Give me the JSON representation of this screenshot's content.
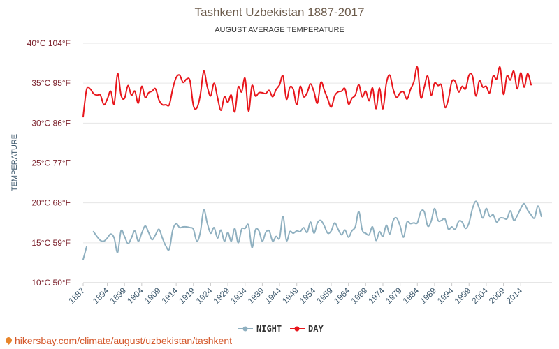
{
  "title": "Tashkent Uzbekistan 1887-2017",
  "subtitle": "AUGUST AVERAGE TEMPERATURE",
  "ylabel": "TEMPERATURE",
  "footer": "hikersbay.com/climate/august/uzbekistan/tashkent",
  "chart_data": {
    "type": "line",
    "title": "Tashkent Uzbekistan 1887-2017",
    "subtitle": "AUGUST AVERAGE TEMPERATURE",
    "ylabel": "TEMPERATURE",
    "xlabel": "",
    "xlim": [
      1887,
      2017
    ],
    "ylim": [
      10,
      40
    ],
    "grid": true,
    "legend_placement": "bottom-center",
    "y_ticks": [
      {
        "c": 10,
        "label": "10°C 50°F"
      },
      {
        "c": 15,
        "label": "15°C 59°F"
      },
      {
        "c": 20,
        "label": "20°C 68°F"
      },
      {
        "c": 25,
        "label": "25°C 77°F"
      },
      {
        "c": 30,
        "label": "30°C 86°F"
      },
      {
        "c": 35,
        "label": "35°C 95°F"
      },
      {
        "c": 40,
        "label": "40°C 104°F"
      }
    ],
    "x_ticks": [
      1887,
      1894,
      1899,
      1904,
      1909,
      1914,
      1919,
      1924,
      1929,
      1934,
      1939,
      1944,
      1949,
      1954,
      1959,
      1964,
      1969,
      1974,
      1979,
      1984,
      1989,
      1994,
      1999,
      2004,
      2009,
      2014
    ],
    "series": [
      {
        "name": "NIGHT",
        "color": "#8fb0c0",
        "points": [
          [
            1887,
            12.9
          ],
          [
            1888,
            14.5
          ],
          [
            1890,
            16.4
          ],
          [
            1891,
            15.8
          ],
          [
            1892,
            15.3
          ],
          [
            1893,
            15.2
          ],
          [
            1894,
            15.6
          ],
          [
            1895,
            16.1
          ],
          [
            1896,
            15.6
          ],
          [
            1897,
            13.8
          ],
          [
            1898,
            16.5
          ],
          [
            1899,
            15.8
          ],
          [
            1900,
            14.9
          ],
          [
            1901,
            15.6
          ],
          [
            1902,
            16.5
          ],
          [
            1903,
            15.2
          ],
          [
            1904,
            16.2
          ],
          [
            1905,
            17.1
          ],
          [
            1906,
            16.3
          ],
          [
            1907,
            15.4
          ],
          [
            1908,
            16.0
          ],
          [
            1909,
            16.7
          ],
          [
            1910,
            15.6
          ],
          [
            1911,
            14.6
          ],
          [
            1912,
            14.2
          ],
          [
            1913,
            16.6
          ],
          [
            1914,
            17.4
          ],
          [
            1915,
            16.9
          ],
          [
            1916,
            17.0
          ],
          [
            1917,
            17.0
          ],
          [
            1918,
            16.9
          ],
          [
            1919,
            16.7
          ],
          [
            1920,
            15.2
          ],
          [
            1921,
            16.3
          ],
          [
            1922,
            19.1
          ],
          [
            1923,
            17.5
          ],
          [
            1924,
            16.2
          ],
          [
            1925,
            16.9
          ],
          [
            1926,
            15.6
          ],
          [
            1927,
            16.6
          ],
          [
            1928,
            15.2
          ],
          [
            1929,
            16.3
          ],
          [
            1930,
            15.2
          ],
          [
            1931,
            16.8
          ],
          [
            1932,
            15.0
          ],
          [
            1933,
            16.7
          ],
          [
            1934,
            16.8
          ],
          [
            1935,
            17.2
          ],
          [
            1936,
            14.4
          ],
          [
            1937,
            16.6
          ],
          [
            1938,
            16.5
          ],
          [
            1939,
            15.2
          ],
          [
            1940,
            16.3
          ],
          [
            1941,
            16.5
          ],
          [
            1942,
            15.2
          ],
          [
            1943,
            15.8
          ],
          [
            1944,
            15.6
          ],
          [
            1945,
            18.3
          ],
          [
            1946,
            15.3
          ],
          [
            1947,
            16.4
          ],
          [
            1948,
            16.2
          ],
          [
            1949,
            16.5
          ],
          [
            1950,
            16.4
          ],
          [
            1951,
            16.9
          ],
          [
            1952,
            16.3
          ],
          [
            1953,
            17.6
          ],
          [
            1954,
            16.2
          ],
          [
            1955,
            17.5
          ],
          [
            1956,
            17.8
          ],
          [
            1957,
            17.1
          ],
          [
            1958,
            16.2
          ],
          [
            1959,
            16.5
          ],
          [
            1960,
            17.5
          ],
          [
            1961,
            16.7
          ],
          [
            1962,
            16.0
          ],
          [
            1963,
            16.6
          ],
          [
            1964,
            15.7
          ],
          [
            1965,
            16.5
          ],
          [
            1966,
            17.0
          ],
          [
            1967,
            18.9
          ],
          [
            1968,
            16.6
          ],
          [
            1969,
            16.2
          ],
          [
            1970,
            16.0
          ],
          [
            1971,
            17.0
          ],
          [
            1972,
            15.3
          ],
          [
            1973,
            16.4
          ],
          [
            1974,
            15.8
          ],
          [
            1975,
            17.2
          ],
          [
            1976,
            16.1
          ],
          [
            1977,
            17.8
          ],
          [
            1978,
            18.1
          ],
          [
            1979,
            17.1
          ],
          [
            1980,
            15.7
          ],
          [
            1981,
            17.6
          ],
          [
            1982,
            17.4
          ],
          [
            1983,
            17.5
          ],
          [
            1984,
            17.5
          ],
          [
            1985,
            18.9
          ],
          [
            1986,
            18.9
          ],
          [
            1987,
            17.1
          ],
          [
            1988,
            17.7
          ],
          [
            1989,
            19.3
          ],
          [
            1990,
            17.8
          ],
          [
            1991,
            17.8
          ],
          [
            1992,
            18.0
          ],
          [
            1993,
            16.7
          ],
          [
            1994,
            17.0
          ],
          [
            1995,
            16.7
          ],
          [
            1996,
            17.7
          ],
          [
            1997,
            17.6
          ],
          [
            1998,
            16.8
          ],
          [
            1999,
            17.5
          ],
          [
            2000,
            19.3
          ],
          [
            2001,
            20.2
          ],
          [
            2002,
            19.3
          ],
          [
            2003,
            18.1
          ],
          [
            2004,
            19.3
          ],
          [
            2005,
            18.3
          ],
          [
            2006,
            18.5
          ],
          [
            2007,
            17.6
          ],
          [
            2008,
            18.1
          ],
          [
            2009,
            18.1
          ],
          [
            2010,
            18.0
          ],
          [
            2011,
            19.0
          ],
          [
            2012,
            17.8
          ],
          [
            2013,
            18.4
          ],
          [
            2014,
            19.3
          ],
          [
            2015,
            19.9
          ],
          [
            2016,
            19.1
          ],
          [
            2017,
            18.5
          ],
          [
            2018,
            18.1
          ],
          [
            2019,
            19.6
          ],
          [
            2020,
            18.3
          ]
        ]
      },
      {
        "name": "DAY",
        "color": "#e8161c",
        "points": [
          [
            1887,
            30.8
          ],
          [
            1888,
            34.2
          ],
          [
            1889,
            34.3
          ],
          [
            1890,
            33.7
          ],
          [
            1891,
            33.5
          ],
          [
            1892,
            33.5
          ],
          [
            1893,
            32.3
          ],
          [
            1894,
            33.0
          ],
          [
            1895,
            34.0
          ],
          [
            1896,
            32.4
          ],
          [
            1897,
            36.2
          ],
          [
            1898,
            33.5
          ],
          [
            1899,
            33.1
          ],
          [
            1900,
            34.7
          ],
          [
            1901,
            33.5
          ],
          [
            1902,
            34.0
          ],
          [
            1903,
            32.5
          ],
          [
            1904,
            34.6
          ],
          [
            1905,
            33.2
          ],
          [
            1906,
            33.8
          ],
          [
            1907,
            34.0
          ],
          [
            1908,
            34.3
          ],
          [
            1909,
            32.9
          ],
          [
            1910,
            32.3
          ],
          [
            1911,
            32.3
          ],
          [
            1912,
            32.3
          ],
          [
            1913,
            34.3
          ],
          [
            1914,
            35.7
          ],
          [
            1915,
            36.0
          ],
          [
            1916,
            35.1
          ],
          [
            1917,
            35.5
          ],
          [
            1918,
            35.3
          ],
          [
            1919,
            32.2
          ],
          [
            1920,
            31.9
          ],
          [
            1921,
            33.5
          ],
          [
            1922,
            36.5
          ],
          [
            1923,
            34.6
          ],
          [
            1924,
            33.4
          ],
          [
            1925,
            35.0
          ],
          [
            1926,
            33.2
          ],
          [
            1927,
            31.6
          ],
          [
            1928,
            33.3
          ],
          [
            1929,
            32.6
          ],
          [
            1930,
            33.5
          ],
          [
            1931,
            31.4
          ],
          [
            1932,
            34.5
          ],
          [
            1933,
            33.9
          ],
          [
            1934,
            35.6
          ],
          [
            1935,
            31.5
          ],
          [
            1936,
            34.7
          ],
          [
            1937,
            33.4
          ],
          [
            1938,
            33.8
          ],
          [
            1939,
            33.8
          ],
          [
            1940,
            33.7
          ],
          [
            1941,
            34.1
          ],
          [
            1942,
            33.3
          ],
          [
            1943,
            34.2
          ],
          [
            1944,
            34.8
          ],
          [
            1945,
            35.9
          ],
          [
            1946,
            33.0
          ],
          [
            1947,
            34.5
          ],
          [
            1948,
            34.2
          ],
          [
            1949,
            32.3
          ],
          [
            1950,
            34.6
          ],
          [
            1951,
            33.3
          ],
          [
            1952,
            33.8
          ],
          [
            1953,
            34.9
          ],
          [
            1954,
            33.9
          ],
          [
            1955,
            32.5
          ],
          [
            1956,
            35.1
          ],
          [
            1957,
            34.1
          ],
          [
            1958,
            33.0
          ],
          [
            1959,
            32.0
          ],
          [
            1960,
            33.4
          ],
          [
            1961,
            33.9
          ],
          [
            1962,
            34.0
          ],
          [
            1963,
            34.3
          ],
          [
            1964,
            32.4
          ],
          [
            1965,
            33.1
          ],
          [
            1966,
            33.5
          ],
          [
            1967,
            34.8
          ],
          [
            1968,
            33.3
          ],
          [
            1969,
            34.0
          ],
          [
            1970,
            32.8
          ],
          [
            1971,
            34.4
          ],
          [
            1972,
            31.8
          ],
          [
            1973,
            34.4
          ],
          [
            1974,
            31.8
          ],
          [
            1975,
            35.0
          ],
          [
            1976,
            36.0
          ],
          [
            1977,
            34.2
          ],
          [
            1978,
            33.2
          ],
          [
            1979,
            33.8
          ],
          [
            1980,
            33.9
          ],
          [
            1981,
            33.0
          ],
          [
            1982,
            34.2
          ],
          [
            1983,
            35.2
          ],
          [
            1984,
            37.0
          ],
          [
            1985,
            33.2
          ],
          [
            1986,
            34.5
          ],
          [
            1987,
            35.9
          ],
          [
            1988,
            33.5
          ],
          [
            1989,
            35.0
          ],
          [
            1990,
            34.7
          ],
          [
            1991,
            34.7
          ],
          [
            1992,
            32.0
          ],
          [
            1993,
            33.0
          ],
          [
            1994,
            35.2
          ],
          [
            1995,
            35.2
          ],
          [
            1996,
            33.9
          ],
          [
            1997,
            34.6
          ],
          [
            1998,
            34.3
          ],
          [
            1999,
            36.0
          ],
          [
            2000,
            35.9
          ],
          [
            2001,
            33.4
          ],
          [
            2002,
            35.3
          ],
          [
            2003,
            34.5
          ],
          [
            2004,
            34.6
          ],
          [
            2005,
            33.8
          ],
          [
            2006,
            35.9
          ],
          [
            2007,
            35.5
          ],
          [
            2008,
            37.0
          ],
          [
            2009,
            33.6
          ],
          [
            2010,
            35.9
          ],
          [
            2011,
            35.4
          ],
          [
            2012,
            36.5
          ],
          [
            2013,
            34.3
          ],
          [
            2014,
            36.3
          ],
          [
            2015,
            34.5
          ],
          [
            2016,
            36.2
          ],
          [
            2017,
            34.8
          ]
        ]
      }
    ]
  }
}
